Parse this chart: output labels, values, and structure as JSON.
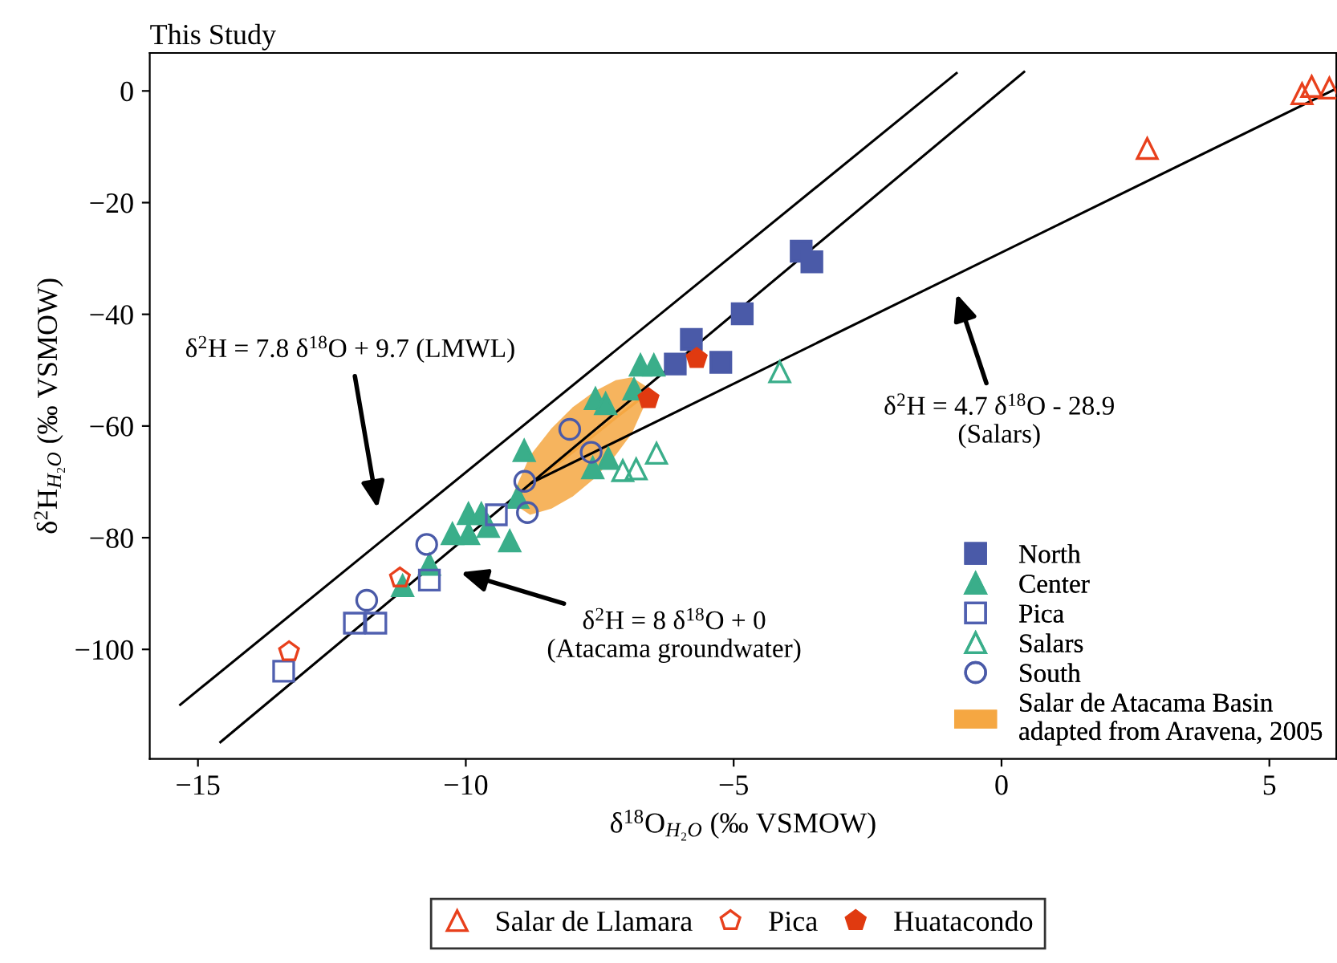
{
  "chart_data": {
    "type": "scatter",
    "title": "This Study",
    "xlabel": "δ$^{18}$O$_{H₂O}$ (‰ VSMOW)",
    "ylabel": "δ$^{2}$H$_{H₂O}$ (‰ VSMOW)",
    "xlim": [
      -15.9,
      6.25
    ],
    "ylim": [
      -119.6,
      6.8
    ],
    "xticks": [
      -15,
      -10,
      -5,
      0,
      5
    ],
    "yticks": [
      -100,
      -80,
      -60,
      -40,
      -20,
      0
    ],
    "grid": false,
    "legend": "bottom right",
    "series": [
      {
        "type": "line",
        "color": "#000000",
        "x": [
          -15.33,
          -0.84
        ],
        "values": [
          -109.9,
          3.2
        ]
      },
      {
        "type": "line",
        "color": "#000000",
        "x": [
          -14.58,
          0.42
        ],
        "values": [
          -116.6,
          3.4
        ]
      },
      {
        "type": "line",
        "color": "#000000",
        "x": [
          -8.76,
          6.2
        ],
        "values": [
          -70.1,
          0.2
        ]
      },
      {
        "name": "North",
        "marker": "square",
        "color": "#4a5aa8",
        "x": [
          -3.74,
          -3.54,
          -4.84,
          -5.79,
          -6.09,
          -5.24
        ],
        "values": [
          -28.7,
          -30.6,
          -39.9,
          -44.5,
          -48.9,
          -48.6
        ]
      },
      {
        "name": "Center",
        "marker": "triangle",
        "color": "#3aae8a",
        "x": [
          -6.74,
          -6.49,
          -6.86,
          -7.58,
          -7.39,
          -8.91,
          -7.34,
          -7.63,
          -9.03,
          -9.95,
          -9.71,
          -10.25,
          -9.95,
          -9.58,
          -9.18,
          -10.68,
          -11.18
        ],
        "values": [
          -49.1,
          -49.1,
          -53.4,
          -55.1,
          -56.0,
          -64.4,
          -65.8,
          -67.5,
          -72.8,
          -75.7,
          -75.7,
          -79.3,
          -79.3,
          -78.0,
          -80.6,
          -84.8,
          -88.6
        ]
      },
      {
        "name": "Pica",
        "marker": "square",
        "color": "#5060b0",
        "x": [
          -9.43,
          -10.68,
          -12.08,
          -11.68,
          -13.4
        ],
        "values": [
          -75.9,
          -87.6,
          -95.3,
          -95.3,
          -103.9
        ]
      },
      {
        "name": "Salars",
        "marker": "triangle",
        "color": "#3aae8a",
        "x": [
          -4.14,
          -6.44,
          -6.82,
          -7.07
        ],
        "values": [
          -50.3,
          -64.9,
          -67.7,
          -68.0
        ]
      },
      {
        "name": "South",
        "marker": "circle",
        "color": "#4a5aa8",
        "x": [
          -8.06,
          -7.66,
          -8.9,
          -8.85,
          -10.73,
          -11.85
        ],
        "values": [
          -60.6,
          -64.7,
          -69.9,
          -75.5,
          -81.2,
          -91.2
        ]
      },
      {
        "type": "line",
        "name": "Salar de Atacama Basin\nadapted from Aravena, 2005",
        "color": "#f5a742",
        "x": [
          -9.1,
          -8.8,
          -8.4,
          -8.0,
          -7.6,
          -7.2,
          -6.9,
          -6.65
        ],
        "values": [
          -72.9,
          -70.6,
          -67.6,
          -64.6,
          -61.6,
          -58.5,
          -56.3,
          -54.4
        ],
        "lower": [
          -74.0,
          -75.9,
          -74.8,
          -72.6,
          -69.4,
          -65.2,
          -61.3,
          -56.0
        ],
        "upper": [
          -71.8,
          -65.3,
          -60.4,
          -56.6,
          -53.8,
          -51.8,
          -51.3,
          -52.8
        ]
      },
      {
        "name": "Salar de Llamara",
        "marker": "triangle",
        "color": "#e8401c",
        "x": [
          2.72,
          5.61,
          5.79,
          6.12
        ],
        "values": [
          -10.3,
          -0.5,
          0.8,
          0.5
        ]
      },
      {
        "name": "Pica",
        "color": "#e8401c",
        "x": [
          -11.23,
          -13.3
        ],
        "values": [
          -87.2,
          -100.4
        ]
      },
      {
        "name": "Huatacondo",
        "color": "#e03a10",
        "x": [
          -5.69,
          -6.59
        ],
        "values": [
          -47.9,
          -55.1
        ]
      }
    ],
    "annotations": [
      "δ$^{2}$H = 7.8 δ$^{18}$O + 9.7 (LMWL)",
      "δ$^{2}$H = 8 δ$^{18}$O + 0\n(Atacama groundwater)",
      "δ$^{2}$H = 4.7 δ$^{18}$O - 28.9\n(Salars)"
    ]
  }
}
